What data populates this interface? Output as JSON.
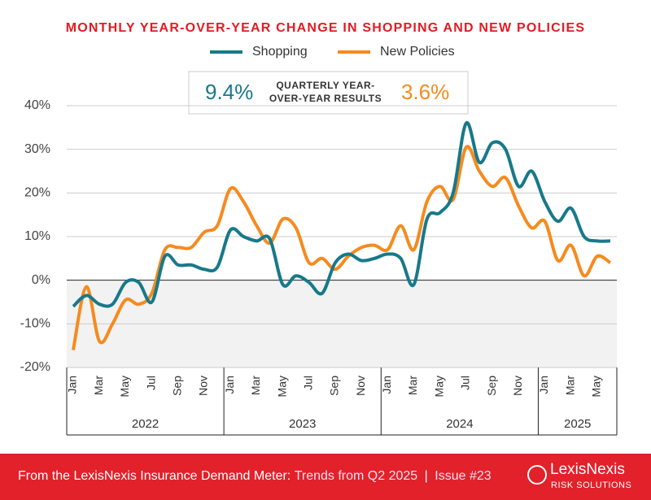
{
  "chart_data": {
    "type": "line",
    "title": "MONTHLY YEAR-OVER-YEAR CHANGE IN SHOPPING AND NEW POLICIES",
    "categories": [
      "Jan",
      null,
      "Mar",
      null,
      "May",
      null,
      "Jul",
      null,
      "Sep",
      null,
      "Nov",
      null,
      "Jan",
      null,
      "Mar",
      null,
      "May",
      null,
      "Jul",
      null,
      "Sep",
      null,
      "Nov",
      null,
      "Jan",
      null,
      "Mar",
      null,
      "May",
      null,
      "Jul",
      null,
      "Sep",
      null,
      "Nov",
      null,
      "Jan",
      null,
      "Mar",
      null,
      "May",
      null
    ],
    "years": [
      "2022",
      "2023",
      "2024",
      "2025"
    ],
    "series": [
      {
        "name": "Shopping",
        "color": "#17798a",
        "values": [
          -6,
          -3.5,
          -5.5,
          -5.5,
          -0.5,
          -0.5,
          -5,
          5.5,
          3.5,
          3.5,
          2.5,
          3,
          11.5,
          10,
          9,
          9.5,
          -1,
          1,
          -0.5,
          -3,
          4,
          6,
          4.5,
          5,
          6,
          5,
          -1,
          14,
          15.5,
          20,
          36,
          27,
          31.5,
          30,
          21.5,
          25,
          18,
          13.5,
          16.5,
          10,
          9,
          9
        ]
      },
      {
        "name": "New Policies",
        "color": "#f58b1f",
        "values": [
          -16,
          -1.5,
          -14,
          -10,
          -4.5,
          -5.5,
          -3,
          7,
          7.5,
          7.5,
          11,
          12.5,
          21,
          18,
          12.5,
          8.5,
          14,
          12,
          4,
          5,
          2.5,
          5.5,
          7.5,
          8,
          7,
          12.5,
          7,
          18,
          21.5,
          18.5,
          30.5,
          25,
          21.5,
          23.5,
          17,
          12,
          13.5,
          4.5,
          8,
          1,
          5.5,
          4
        ]
      }
    ],
    "ylim": [
      -20,
      40
    ],
    "yticks": [
      {
        "value": -20,
        "label": "-20%"
      },
      {
        "value": -10,
        "label": "-10%"
      },
      {
        "value": 0,
        "label": "0%"
      },
      {
        "value": 10,
        "label": "10%"
      },
      {
        "value": 20,
        "label": "20%"
      },
      {
        "value": 30,
        "label": "30%"
      },
      {
        "value": 40,
        "label": "40%"
      }
    ],
    "grid": true,
    "callout": {
      "shopping": "9.4%",
      "label": [
        "QUARTERLY YEAR-",
        "OVER-YEAR RESULTS"
      ],
      "new_policies": "3.6%"
    }
  },
  "footer": {
    "source": "From the LexisNexis Insurance Demand Meter:",
    "report": "Trends from Q2 2025",
    "separator": "|",
    "issue": "Issue #23",
    "brand": "LexisNexis",
    "brand_sub": "RISK SOLUTIONS"
  }
}
